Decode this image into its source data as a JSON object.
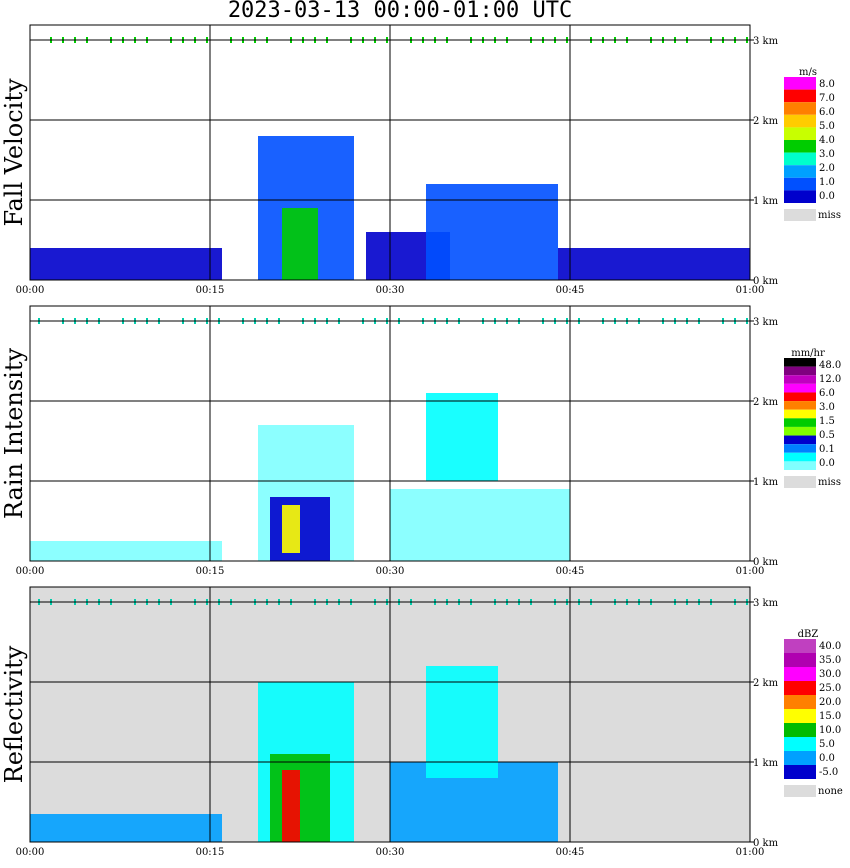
{
  "title": "2023-03-13   00:00-01:00 UTC",
  "x_tick_labels": [
    "00:00",
    "00:15",
    "00:30",
    "00:45",
    "01:00"
  ],
  "y_tick_labels": [
    "0 km",
    "1 km",
    "2 km",
    "3 km"
  ],
  "chart_data": [
    {
      "type": "heatmap",
      "title": "Fall Velocity",
      "xlabel": "",
      "ylabel": "Fall Velocity",
      "x_range": [
        "00:00",
        "01:00"
      ],
      "y_range_km": [
        0,
        3.2
      ],
      "grid": true,
      "colorbar": {
        "unit": "m/s",
        "levels": [
          "8.0",
          "7.0",
          "6.0",
          "5.0",
          "4.0",
          "3.0",
          "2.0",
          "1.0",
          "0.0"
        ],
        "colors": [
          "#ff00ff",
          "#ff0000",
          "#ff8000",
          "#ffcc00",
          "#c8ff00",
          "#00cc00",
          "#00ffcc",
          "#00a0ff",
          "#0050ff",
          "#0000cc"
        ],
        "missing_label": "miss",
        "missing_color": "#dcdcdc"
      },
      "background": "#ffffff",
      "echo_regions": [
        {
          "t0": 0,
          "t1": 16,
          "h0": 0,
          "h1": 0.4,
          "color": "#0000cc"
        },
        {
          "t0": 19,
          "t1": 27,
          "h0": 0,
          "h1": 1.8,
          "color": "#0050ff"
        },
        {
          "t0": 21,
          "t1": 24,
          "h0": 0,
          "h1": 0.9,
          "color": "#00cc00"
        },
        {
          "t0": 28,
          "t1": 35,
          "h0": 0,
          "h1": 0.6,
          "color": "#0000cc"
        },
        {
          "t0": 33,
          "t1": 44,
          "h0": 0,
          "h1": 1.2,
          "color": "#0050ff"
        },
        {
          "t0": 44,
          "t1": 60,
          "h0": 0,
          "h1": 0.4,
          "color": "#0000cc"
        }
      ]
    },
    {
      "type": "heatmap",
      "title": "Rain Intensity",
      "xlabel": "",
      "ylabel": "Rain Intensity",
      "x_range": [
        "00:00",
        "01:00"
      ],
      "y_range_km": [
        0,
        3.2
      ],
      "grid": true,
      "colorbar": {
        "unit": "mm/hr",
        "levels": [
          "48.0",
          "12.0",
          "6.0",
          "3.0",
          "1.5",
          "0.5",
          "0.1",
          "0.0"
        ],
        "colors": [
          "#000000",
          "#800080",
          "#c000c0",
          "#ff00ff",
          "#ff0000",
          "#ff8000",
          "#ffff00",
          "#00cc00",
          "#80ff00",
          "#0000cc",
          "#0080ff",
          "#00ffff",
          "#80ffff"
        ],
        "missing_label": "miss",
        "missing_color": "#dcdcdc"
      },
      "background": "#ffffff",
      "echo_regions": [
        {
          "t0": 0,
          "t1": 16,
          "h0": 0,
          "h1": 0.25,
          "color": "#80ffff"
        },
        {
          "t0": 19,
          "t1": 27,
          "h0": 0,
          "h1": 1.7,
          "color": "#80ffff"
        },
        {
          "t0": 20,
          "t1": 25,
          "h0": 0,
          "h1": 0.8,
          "color": "#0000cc"
        },
        {
          "t0": 21,
          "t1": 22.5,
          "h0": 0.1,
          "h1": 0.7,
          "color": "#ffff00"
        },
        {
          "t0": 30,
          "t1": 45,
          "h0": 0,
          "h1": 0.9,
          "color": "#80ffff"
        },
        {
          "t0": 33,
          "t1": 39,
          "h0": 1.0,
          "h1": 2.1,
          "color": "#00ffff"
        }
      ]
    },
    {
      "type": "heatmap",
      "title": "Reflectivity",
      "xlabel": "",
      "ylabel": "Reflectivity",
      "x_range": [
        "00:00",
        "01:00"
      ],
      "y_range_km": [
        0,
        3.2
      ],
      "grid": true,
      "colorbar": {
        "unit": "dBZ",
        "levels": [
          "40.0",
          "35.0",
          "30.0",
          "25.0",
          "20.0",
          "15.0",
          "10.0",
          "5.0",
          "0.0",
          "-5.0"
        ],
        "colors": [
          "#c040c0",
          "#b000b0",
          "#ff00ff",
          "#ff0000",
          "#ff8000",
          "#ffff00",
          "#00bb00",
          "#00ffff",
          "#00a0ff",
          "#0000cc"
        ],
        "missing_label": "none",
        "missing_color": "#dcdcdc"
      },
      "background": "#dcdcdc",
      "echo_regions": [
        {
          "t0": 0,
          "t1": 16,
          "h0": 0,
          "h1": 0.35,
          "color": "#00a0ff"
        },
        {
          "t0": 19,
          "t1": 27,
          "h0": 0,
          "h1": 2.0,
          "color": "#00ffff"
        },
        {
          "t0": 20,
          "t1": 25,
          "h0": 0,
          "h1": 1.1,
          "color": "#00bb00"
        },
        {
          "t0": 21,
          "t1": 22.5,
          "h0": 0,
          "h1": 0.9,
          "color": "#ff0000"
        },
        {
          "t0": 30,
          "t1": 44,
          "h0": 0,
          "h1": 1.0,
          "color": "#00a0ff"
        },
        {
          "t0": 33,
          "t1": 39,
          "h0": 0.8,
          "h1": 2.2,
          "color": "#00ffff"
        }
      ]
    }
  ]
}
